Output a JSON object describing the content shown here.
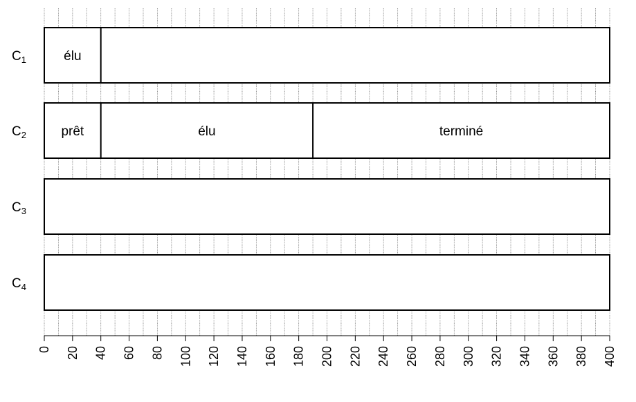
{
  "chart_data": {
    "type": "gantt",
    "x_range": [
      0,
      400
    ],
    "x_ticks": [
      "0",
      "20",
      "40",
      "60",
      "80",
      "100",
      "120",
      "140",
      "160",
      "180",
      "200",
      "220",
      "240",
      "260",
      "280",
      "300",
      "320",
      "340",
      "360",
      "380",
      "400"
    ],
    "grid_step": 10,
    "rows": [
      {
        "label": "C",
        "subscript": "1",
        "segments": [
          {
            "start": 0,
            "end": 40,
            "label": "élu"
          },
          {
            "start": 40,
            "end": 400,
            "label": ""
          }
        ]
      },
      {
        "label": "C",
        "subscript": "2",
        "segments": [
          {
            "start": 0,
            "end": 40,
            "label": "prêt"
          },
          {
            "start": 40,
            "end": 190,
            "label": "élu"
          },
          {
            "start": 190,
            "end": 400,
            "label": "terminé"
          }
        ]
      },
      {
        "label": "C",
        "subscript": "3",
        "segments": [
          {
            "start": 0,
            "end": 400,
            "label": ""
          }
        ]
      },
      {
        "label": "C",
        "subscript": "4",
        "segments": [
          {
            "start": 0,
            "end": 400,
            "label": ""
          }
        ]
      }
    ]
  }
}
